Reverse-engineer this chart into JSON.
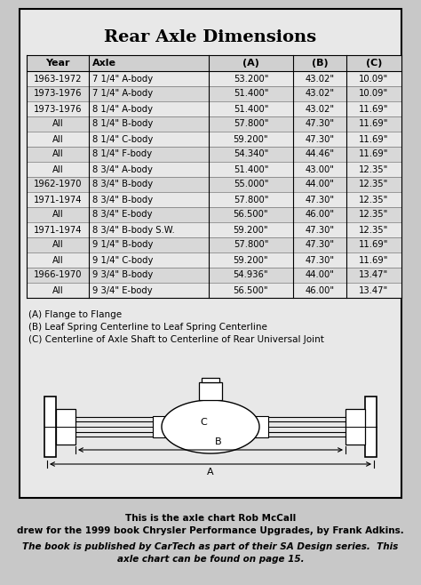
{
  "title": "Rear Axle Dimensions",
  "headers": [
    "Year",
    "Axle",
    "(A)",
    "(B)",
    "(C)"
  ],
  "rows": [
    [
      "1963-1972",
      "7 1/4\" A-body",
      "53.200\"",
      "43.02\"",
      "10.09\""
    ],
    [
      "1973-1976",
      "7 1/4\" A-body",
      "51.400\"",
      "43.02\"",
      "10.09\""
    ],
    [
      "1973-1976",
      "8 1/4\" A-body",
      "51.400\"",
      "43.02\"",
      "11.69\""
    ],
    [
      "All",
      "8 1/4\" B-body",
      "57.800\"",
      "47.30\"",
      "11.69\""
    ],
    [
      "All",
      "8 1/4\" C-body",
      "59.200\"",
      "47.30\"",
      "11.69\""
    ],
    [
      "All",
      "8 1/4\" F-body",
      "54.340\"",
      "44.46\"",
      "11.69\""
    ],
    [
      "All",
      "8 3/4\" A-body",
      "51.400\"",
      "43.00\"",
      "12.35\""
    ],
    [
      "1962-1970",
      "8 3/4\" B-body",
      "55.000\"",
      "44.00\"",
      "12.35\""
    ],
    [
      "1971-1974",
      "8 3/4\" B-body",
      "57.800\"",
      "47.30\"",
      "12.35\""
    ],
    [
      "All",
      "8 3/4\" E-body",
      "56.500\"",
      "46.00\"",
      "12.35\""
    ],
    [
      "1971-1974",
      "8 3/4\" B-body S.W.",
      "59.200\"",
      "47.30\"",
      "12.35\""
    ],
    [
      "All",
      "9 1/4\" B-body",
      "57.800\"",
      "47.30\"",
      "11.69\""
    ],
    [
      "All",
      "9 1/4\" C-body",
      "59.200\"",
      "47.30\"",
      "11.69\""
    ],
    [
      "1966-1970",
      "9 3/4\" B-body",
      "54.936\"",
      "44.00\"",
      "13.47\""
    ],
    [
      "All",
      "9 3/4\" E-body",
      "56.500\"",
      "46.00\"",
      "13.47\""
    ]
  ],
  "notes": [
    "(A) Flange to Flange",
    "(B) Leaf Spring Centerline to Leaf Spring Centerline",
    "(C) Centerline of Axle Shaft to Centerline of Rear Universal Joint"
  ],
  "caption_bold": "This is the axle chart Rob McCall\ndrew for the 1999 book Chrysler Performance Upgrades, by Frank Adkins.",
  "caption_italic": "The book is published by CarTech as part of their SA Design series.  This\naxle chart can be found on page 15.",
  "bg_color": "#c8c8c8",
  "inner_bg": "#e0e0e0"
}
